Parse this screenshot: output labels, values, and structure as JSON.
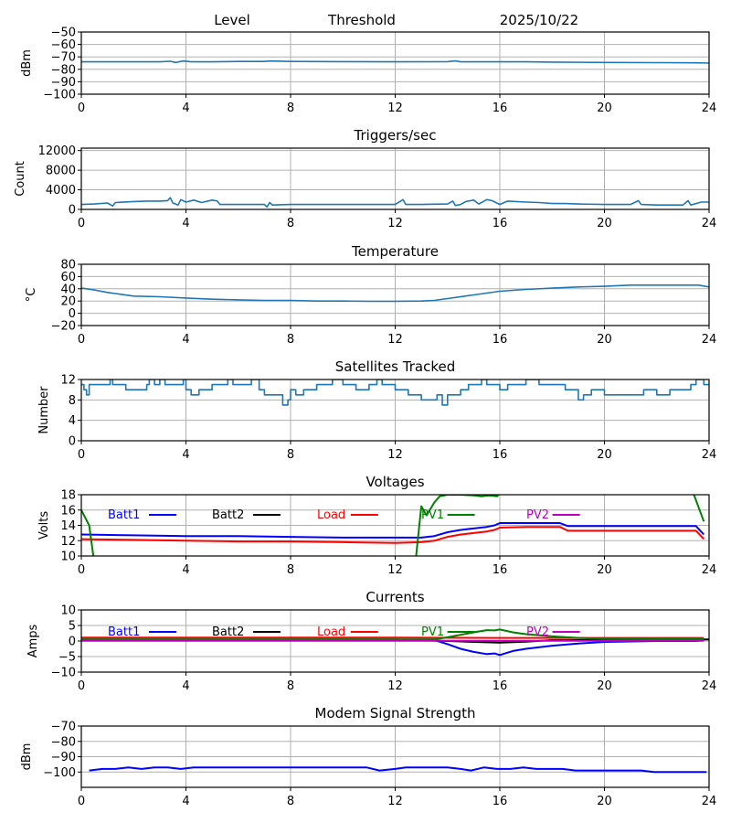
{
  "header": {
    "label_level": "Level",
    "label_threshold": "Threshold",
    "date": "2025/10/22"
  },
  "chart_data": [
    {
      "id": "level",
      "type": "line",
      "title": "",
      "xlabel": "",
      "ylabel": "dBm",
      "xlim": [
        0,
        24
      ],
      "ylim": [
        -100,
        -50
      ],
      "xticks": [
        0,
        4,
        8,
        12,
        16,
        20,
        24
      ],
      "yticks": [
        -100,
        -90,
        -80,
        -70,
        -60,
        -50
      ],
      "ytick_labels": [
        "−100",
        "−90",
        "−80",
        "−70",
        "−60",
        "−50"
      ],
      "grid": true,
      "series": [
        {
          "name": "Level",
          "color": "#1f77b4",
          "x": [
            0,
            1,
            2,
            3,
            3.4,
            3.6,
            3.9,
            4.2,
            5,
            6,
            7,
            7.2,
            8,
            10,
            12,
            14,
            14.3,
            14.5,
            16,
            17,
            18,
            20,
            22,
            23.5,
            24
          ],
          "y": [
            -74,
            -74,
            -74,
            -74,
            -73.5,
            -74.5,
            -73.3,
            -74,
            -74,
            -73.7,
            -73.7,
            -73.3,
            -73.7,
            -73.8,
            -74,
            -73.8,
            -73.2,
            -74,
            -74,
            -74,
            -74.2,
            -74.5,
            -74.6,
            -74.8,
            -75
          ]
        }
      ]
    },
    {
      "id": "triggers",
      "type": "line",
      "title": "Triggers/sec",
      "xlabel": "",
      "ylabel": "Count",
      "xlim": [
        0,
        24
      ],
      "ylim": [
        0,
        12500
      ],
      "xticks": [
        0,
        4,
        8,
        12,
        16,
        20,
        24
      ],
      "yticks": [
        0,
        4000,
        8000,
        12000
      ],
      "ytick_labels": [
        "0",
        "4000",
        "8000",
        "12000"
      ],
      "grid": true,
      "series": [
        {
          "name": "Triggers",
          "color": "#1f77b4",
          "x": [
            0,
            0.5,
            1,
            1.2,
            1.3,
            2,
            2.5,
            3,
            3.3,
            3.4,
            3.5,
            3.7,
            3.8,
            4,
            4.3,
            4.6,
            5,
            5.2,
            5.3,
            6,
            7,
            7.1,
            7.2,
            7.3,
            8,
            9,
            10,
            11,
            12,
            12.3,
            12.4,
            13,
            14,
            14.2,
            14.3,
            14.5,
            14.7,
            15,
            15.2,
            15.5,
            15.7,
            16,
            16.3,
            17,
            17.5,
            18,
            18.5,
            19,
            20,
            21,
            21.3,
            21.4,
            22,
            23,
            23.2,
            23.3,
            23.7,
            24
          ],
          "y": [
            1000,
            1100,
            1300,
            700,
            1400,
            1600,
            1700,
            1700,
            1800,
            2400,
            1300,
            900,
            2000,
            1500,
            1900,
            1400,
            1900,
            1700,
            1000,
            1000,
            1000,
            500,
            1400,
            900,
            1000,
            1000,
            1000,
            1000,
            1000,
            2000,
            1000,
            1000,
            1100,
            1700,
            800,
            1000,
            1600,
            1900,
            1100,
            2000,
            1800,
            1000,
            1700,
            1500,
            1400,
            1200,
            1200,
            1100,
            1000,
            1000,
            1800,
            1000,
            900,
            900,
            1800,
            900,
            1500,
            1500
          ]
        }
      ]
    },
    {
      "id": "temperature",
      "type": "line",
      "title": "Temperature",
      "xlabel": "",
      "ylabel": "°C",
      "xlim": [
        0,
        24
      ],
      "ylim": [
        -20,
        80
      ],
      "xticks": [
        0,
        4,
        8,
        12,
        16,
        20,
        24
      ],
      "yticks": [
        -20,
        0,
        20,
        40,
        60,
        80
      ],
      "ytick_labels": [
        "−20",
        "0",
        "20",
        "40",
        "60",
        "80"
      ],
      "grid": true,
      "series": [
        {
          "name": "Temperature",
          "color": "#1f77b4",
          "x": [
            0,
            0.5,
            1,
            1.5,
            2,
            3,
            4,
            5,
            6,
            7,
            8,
            9,
            10,
            11,
            12,
            13,
            13.5,
            14,
            15,
            16,
            17,
            18,
            19,
            20,
            21,
            22,
            23,
            23.6,
            24
          ],
          "y": [
            41,
            38,
            34,
            31,
            28,
            27,
            25,
            23,
            22,
            21,
            21,
            20,
            20,
            19.5,
            19.5,
            20,
            21,
            24,
            30,
            36,
            39,
            41,
            43,
            44,
            46,
            46,
            46,
            46,
            43
          ]
        }
      ]
    },
    {
      "id": "satellites",
      "type": "line",
      "title": "Satellites Tracked",
      "xlabel": "",
      "ylabel": "Number",
      "xlim": [
        0,
        24
      ],
      "ylim": [
        0,
        12
      ],
      "xticks": [
        0,
        4,
        8,
        12,
        16,
        20,
        24
      ],
      "yticks": [
        0,
        4,
        8,
        12
      ],
      "ytick_labels": [
        "0",
        "4",
        "8",
        "12"
      ],
      "grid": true,
      "series": [
        {
          "name": "Satellites",
          "color": "#1f77b4",
          "x": [
            0,
            0.1,
            0.2,
            0.3,
            1.0,
            1.1,
            1.2,
            1.4,
            1.7,
            2.5,
            2.6,
            2.8,
            3.0,
            3.2,
            3.5,
            3.9,
            4.0,
            4.2,
            4.5,
            5.0,
            5.6,
            5.8,
            6.0,
            6.5,
            6.8,
            7.0,
            7.5,
            7.7,
            7.9,
            8.0,
            8.2,
            8.5,
            9.0,
            9.6,
            10.0,
            10.5,
            11.0,
            11.3,
            11.5,
            12.0,
            12.5,
            13.0,
            13.4,
            13.6,
            13.8,
            14.0,
            14.5,
            14.8,
            15.0,
            15.3,
            15.5,
            16.0,
            16.3,
            16.5,
            17.0,
            17.5,
            18.0,
            18.5,
            19.0,
            19.2,
            19.5,
            20.0,
            21.0,
            21.5,
            22.0,
            22.5,
            23.0,
            23.3,
            23.5,
            23.8,
            24.0
          ],
          "y": [
            11,
            10,
            9,
            11,
            11,
            12,
            11,
            11,
            10,
            11,
            12,
            11,
            12,
            11,
            11,
            12,
            10,
            9,
            10,
            11,
            12,
            11,
            11,
            12,
            10,
            9,
            9,
            7,
            8,
            10,
            9,
            10,
            11,
            12,
            11,
            10,
            11,
            12,
            11,
            10,
            9,
            8,
            8,
            9,
            7,
            9,
            10,
            11,
            11,
            12,
            11,
            10,
            11,
            11,
            12,
            11,
            11,
            10,
            8,
            9,
            10,
            9,
            9,
            10,
            9,
            10,
            10,
            11,
            12,
            11,
            11
          ]
        }
      ]
    },
    {
      "id": "voltages",
      "type": "line",
      "title": "Voltages",
      "xlabel": "",
      "ylabel": "Volts",
      "xlim": [
        0,
        24
      ],
      "ylim": [
        10,
        18
      ],
      "xticks": [
        0,
        4,
        8,
        12,
        16,
        20,
        24
      ],
      "yticks": [
        10,
        12,
        14,
        16,
        18
      ],
      "ytick_labels": [
        "10",
        "12",
        "14",
        "16",
        "18"
      ],
      "grid": true,
      "legend": {
        "placement": "top",
        "ncol": 5
      },
      "series": [
        {
          "name": "Batt1",
          "color": "#0000ff",
          "x": [
            0,
            2,
            4,
            6,
            8,
            10,
            12,
            13,
            13.5,
            14,
            14.5,
            15,
            15.5,
            15.8,
            16,
            17,
            18,
            18.3,
            18.6,
            20,
            22,
            23,
            23.5,
            23.8
          ],
          "y": [
            12.8,
            12.7,
            12.6,
            12.6,
            12.5,
            12.4,
            12.4,
            12.4,
            12.6,
            13.1,
            13.4,
            13.6,
            13.8,
            14,
            14.3,
            14.3,
            14.3,
            14.3,
            13.9,
            13.9,
            13.9,
            13.9,
            13.9,
            12.8
          ]
        },
        {
          "name": "Batt2",
          "color": "#000000",
          "x": [],
          "y": []
        },
        {
          "name": "Load",
          "color": "#ff0000",
          "x": [
            0,
            2,
            4,
            6,
            8,
            10,
            12,
            13,
            13.5,
            14,
            14.5,
            15,
            15.5,
            15.8,
            16,
            17,
            18,
            18.3,
            18.6,
            20,
            22,
            23,
            23.5,
            23.8
          ],
          "y": [
            12.2,
            12.1,
            12.0,
            11.9,
            11.9,
            11.8,
            11.7,
            11.8,
            12,
            12.5,
            12.8,
            13,
            13.2,
            13.4,
            13.7,
            13.8,
            13.8,
            13.8,
            13.3,
            13.3,
            13.3,
            13.3,
            13.3,
            12.2
          ]
        },
        {
          "name": "PV1",
          "color": "#008000",
          "x": [
            0,
            0.3,
            0.5,
            12.7,
            12.8,
            13.0,
            13.2,
            13.5,
            13.7,
            14.0,
            14.5,
            15.0,
            15.3,
            15.6,
            15.9,
            16.0,
            23.4,
            23.8
          ],
          "y": [
            16,
            14,
            9,
            9,
            10,
            16.5,
            15.3,
            17,
            17.8,
            18,
            18,
            17.9,
            17.8,
            17.9,
            17.8,
            18.2,
            18.2,
            14.5
          ]
        },
        {
          "name": "PV2",
          "color": "#bf00bf",
          "x": [],
          "y": []
        }
      ]
    },
    {
      "id": "currents",
      "type": "line",
      "title": "Currents",
      "xlabel": "",
      "ylabel": "Amps",
      "xlim": [
        0,
        24
      ],
      "ylim": [
        -10,
        10
      ],
      "xticks": [
        0,
        4,
        8,
        12,
        16,
        20,
        24
      ],
      "yticks": [
        -10,
        -5,
        0,
        5,
        10
      ],
      "ytick_labels": [
        "−10",
        "−5",
        "0",
        "5",
        "10"
      ],
      "grid": true,
      "legend": {
        "placement": "top",
        "ncol": 5
      },
      "series": [
        {
          "name": "Batt1",
          "color": "#0000ff",
          "x": [
            0,
            4,
            8,
            12,
            13.5,
            14,
            14.5,
            15,
            15.5,
            15.8,
            16,
            16.5,
            17,
            18,
            19,
            20,
            22,
            23.5,
            23.8
          ],
          "y": [
            0.3,
            0.3,
            0.3,
            0.3,
            0.3,
            -1,
            -2.5,
            -3.5,
            -4.2,
            -4,
            -4.5,
            -3.2,
            -2.5,
            -1.5,
            -0.8,
            -0.3,
            0,
            0,
            0.3
          ]
        },
        {
          "name": "Batt2",
          "color": "#000000",
          "x": [
            0,
            0.5,
            4,
            12,
            13,
            14,
            15,
            16,
            17,
            18,
            24
          ],
          "y": [
            0.5,
            0.5,
            0.5,
            0.5,
            0.2,
            0,
            -0.3,
            -0.5,
            -0.2,
            0.3,
            0.5
          ]
        },
        {
          "name": "Load",
          "color": "#ff0000",
          "x": [
            0,
            4,
            8,
            12,
            16,
            20,
            23.8
          ],
          "y": [
            1.1,
            1.1,
            1.1,
            1.1,
            1.0,
            1.0,
            1.0
          ]
        },
        {
          "name": "PV1",
          "color": "#008000",
          "x": [
            0,
            4,
            8,
            12,
            13.5,
            14,
            14.5,
            15,
            15.5,
            15.8,
            16,
            16.5,
            17,
            18,
            19,
            20,
            22,
            23.8
          ],
          "y": [
            0.5,
            0.5,
            0.5,
            0.5,
            0.5,
            1.2,
            2,
            2.8,
            3.5,
            3.4,
            3.7,
            2.8,
            2.2,
            1.5,
            1,
            0.7,
            0.6,
            0.6
          ]
        },
        {
          "name": "PV2",
          "color": "#bf00bf",
          "x": [
            0,
            4,
            8,
            12,
            16,
            20,
            23.8
          ],
          "y": [
            0.1,
            0.1,
            0.1,
            0.1,
            0.1,
            0.1,
            0.1
          ]
        }
      ]
    },
    {
      "id": "modem",
      "type": "line",
      "title": "Modem Signal Strength",
      "xlabel": "",
      "ylabel": "dBm",
      "xlim": [
        0,
        24
      ],
      "ylim": [
        -110,
        -70
      ],
      "xticks": [
        0,
        4,
        8,
        12,
        16,
        20,
        24
      ],
      "yticks": [
        -100,
        -90,
        -80,
        -70
      ],
      "ytick_labels": [
        "−100",
        "−90",
        "−80",
        "−70"
      ],
      "grid": true,
      "series": [
        {
          "name": "Modem",
          "color": "#0000ff",
          "x": [
            0.3,
            0.8,
            1.3,
            1.8,
            2.3,
            2.8,
            3.3,
            3.8,
            4.3,
            5,
            6,
            7,
            8,
            9,
            10,
            10.9,
            11.4,
            12,
            12.4,
            13,
            13.5,
            14,
            14.5,
            14.9,
            15.4,
            15.9,
            16.4,
            16.9,
            17.4,
            18,
            18.4,
            18.9,
            19.5,
            20,
            21,
            21.4,
            21.9,
            22.5,
            23,
            23.9
          ],
          "y": [
            -99,
            -98,
            -98,
            -97,
            -98,
            -97,
            -97,
            -98,
            -97,
            -97,
            -97,
            -97,
            -97,
            -97,
            -97,
            -97,
            -99,
            -98,
            -97,
            -97,
            -97,
            -97,
            -98,
            -99,
            -97,
            -98,
            -98,
            -97,
            -98,
            -98,
            -98,
            -99,
            -99,
            -99,
            -99,
            -99,
            -100,
            -100,
            -100,
            -100
          ]
        }
      ]
    }
  ]
}
